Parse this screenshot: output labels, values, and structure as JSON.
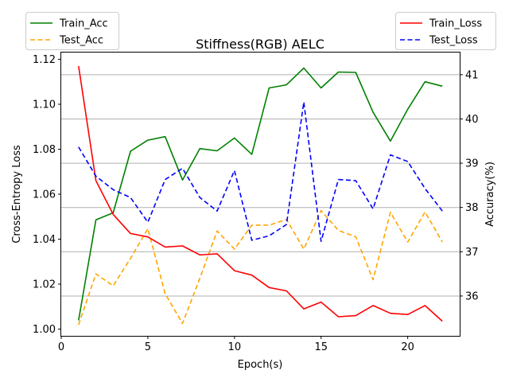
{
  "chart_data": {
    "type": "line",
    "title": "Stiffness(RGB) AELC",
    "xlabel": "Epoch(s)",
    "ylabel_left": "Cross-Entropy Loss",
    "ylabel_right": "Accuracy(%)",
    "xlim": [
      0,
      23
    ],
    "ylim_left": [
      0.997,
      1.123
    ],
    "ylim_right": [
      35.1,
      41.5
    ],
    "x_ticks": [
      0,
      5,
      10,
      15,
      20
    ],
    "y_left_ticks": [
      "1.00",
      "1.02",
      "1.04",
      "1.06",
      "1.08",
      "1.10",
      "1.12"
    ],
    "y_right_ticks": [
      "36",
      "37",
      "38",
      "39",
      "40",
      "41"
    ],
    "grid": "horizontal (right axis ticks)",
    "x": [
      1,
      2,
      3,
      4,
      5,
      6,
      7,
      8,
      9,
      10,
      11,
      12,
      13,
      14,
      15,
      16,
      17,
      18,
      19,
      20,
      21,
      22
    ],
    "series": [
      {
        "name": "Train_Acc",
        "axis": "right",
        "color": "#008000",
        "dash": "solid",
        "values": [
          35.45,
          37.72,
          37.88,
          39.27,
          39.52,
          39.6,
          38.62,
          39.33,
          39.28,
          39.57,
          39.2,
          40.7,
          40.77,
          41.15,
          40.7,
          41.06,
          41.05,
          40.15,
          39.5,
          40.22,
          40.84,
          40.74
        ]
      },
      {
        "name": "Test_Acc",
        "axis": "right",
        "color": "#ffa500",
        "dash": "dashed",
        "values": [
          35.35,
          36.5,
          36.23,
          36.85,
          37.52,
          36.05,
          35.38,
          36.4,
          37.47,
          37.06,
          37.6,
          37.6,
          37.73,
          37.06,
          37.93,
          37.48,
          37.34,
          36.37,
          37.89,
          37.22,
          37.9,
          37.22
        ]
      },
      {
        "name": "Train_Loss",
        "axis": "left",
        "color": "#ff0000",
        "dash": "solid",
        "values": [
          1.117,
          1.066,
          1.051,
          1.0425,
          1.041,
          1.0365,
          1.037,
          1.033,
          1.0335,
          1.026,
          1.024,
          1.0185,
          1.017,
          1.009,
          1.012,
          1.0055,
          1.006,
          1.0105,
          1.007,
          1.0065,
          1.0105,
          1.0035
        ]
      },
      {
        "name": "Test_Loss",
        "axis": "left",
        "color": "#0000ff",
        "dash": "dashed",
        "values": [
          1.081,
          1.068,
          1.062,
          1.0585,
          1.0475,
          1.0665,
          1.0715,
          1.0585,
          1.0525,
          1.0705,
          1.0395,
          1.0415,
          1.0465,
          1.101,
          1.039,
          1.0665,
          1.066,
          1.0535,
          1.0775,
          1.0745,
          1.0625,
          1.0525
        ]
      }
    ],
    "legend_left": [
      "Train_Acc",
      "Test_Acc"
    ],
    "legend_right": [
      "Train_Loss",
      "Test_Loss"
    ]
  }
}
